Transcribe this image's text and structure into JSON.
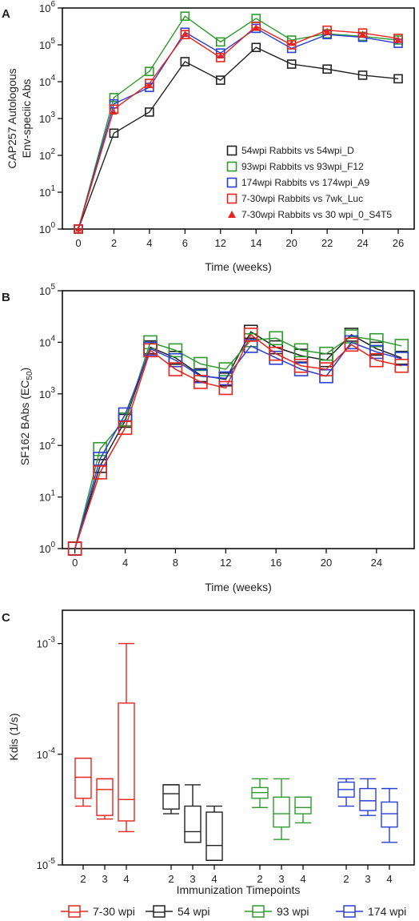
{
  "chart_data": [
    {
      "panel": "A",
      "type": "line",
      "xlabel": "Time (weeks)",
      "ylabel": [
        "CAP257 Autologous",
        "Env-speciic Abs"
      ],
      "yscale": "log",
      "ylim": [
        1,
        1000000
      ],
      "yticks": [
        {
          "base": "10",
          "exp": "0"
        },
        {
          "base": "10",
          "exp": "1"
        },
        {
          "base": "10",
          "exp": "2"
        },
        {
          "base": "10",
          "exp": "3"
        },
        {
          "base": "10",
          "exp": "4"
        },
        {
          "base": "10",
          "exp": "5"
        },
        {
          "base": "10",
          "exp": "6"
        }
      ],
      "categories": [
        "0",
        "2",
        "4",
        "6",
        "12",
        "14",
        "20",
        "22",
        "24",
        "26"
      ],
      "legend_position": "lower-right",
      "series": [
        {
          "name": "54wpi Rabbits vs 54wpi_D",
          "color": "#222222",
          "marker": "square",
          "values": [
            1,
            400,
            1500,
            35000,
            11000,
            85000,
            30000,
            22000,
            15000,
            12000
          ]
        },
        {
          "name": "93wpi Rabbits vs 93wpi_F12",
          "color": "#2e9b2e",
          "marker": "square",
          "values": [
            1,
            3700,
            19000,
            600000,
            120000,
            520000,
            135000,
            200000,
            170000,
            135000
          ]
        },
        {
          "name": "174wpi Rabbits vs 174wpi_A9",
          "color": "#2a3fd6",
          "marker": "square",
          "values": [
            1,
            2500,
            7000,
            220000,
            60000,
            280000,
            80000,
            190000,
            160000,
            110000
          ]
        },
        {
          "name": "7-30wpi Rabbits vs 7wk_Luc",
          "color": "#e8241c",
          "marker": "square",
          "values": [
            1,
            1800,
            9000,
            190000,
            45000,
            320000,
            100000,
            250000,
            210000,
            150000
          ]
        },
        {
          "name": "7-30wpi Rabbits vs 30 wpi_0_S4T5",
          "color": "#e8241c",
          "marker": "triangle",
          "values": [
            1,
            1500,
            8000,
            200000,
            50000,
            300000,
            110000,
            240000,
            200000,
            140000
          ]
        }
      ]
    },
    {
      "panel": "B",
      "type": "line",
      "xlabel": "Time (weeks)",
      "ylabel_main": "SF162 BAbs (EC",
      "ylabel_sub": "50",
      "ylabel_end": ")",
      "yscale": "log",
      "ylim": [
        1,
        100000
      ],
      "xlim": [
        -1,
        27
      ],
      "xticks": [
        0,
        4,
        8,
        12,
        16,
        20,
        24
      ],
      "yticks": [
        {
          "base": "10",
          "exp": "0"
        },
        {
          "base": "10",
          "exp": "1"
        },
        {
          "base": "10",
          "exp": "2"
        },
        {
          "base": "10",
          "exp": "3"
        },
        {
          "base": "10",
          "exp": "4"
        },
        {
          "base": "10",
          "exp": "5"
        }
      ],
      "x": [
        0,
        2,
        4,
        6,
        8,
        10,
        12,
        14,
        16,
        18,
        20,
        22,
        24,
        26
      ],
      "series": [
        {
          "color": "#222222",
          "values": [
            1,
            40,
            300,
            8000,
            5000,
            2300,
            1900,
            16000,
            8000,
            5500,
            4500,
            14000,
            7500,
            5000
          ]
        },
        {
          "color": "#2e9b2e",
          "values": [
            1,
            85,
            320,
            10000,
            7000,
            3800,
            3000,
            11000,
            12000,
            7000,
            6000,
            13000,
            11000,
            8500
          ]
        },
        {
          "color": "#2a3fd6",
          "values": [
            1,
            55,
            400,
            7500,
            4500,
            2200,
            2000,
            8500,
            5000,
            3000,
            2200,
            10000,
            6500,
            4800
          ]
        },
        {
          "color": "#e8241c",
          "values": [
            1,
            30,
            220,
            7000,
            3000,
            1700,
            1300,
            14000,
            6000,
            3500,
            3000,
            9000,
            4500,
            3500
          ]
        }
      ]
    },
    {
      "panel": "C",
      "type": "box",
      "xlabel": "Immunization Timepoints",
      "ylabel": "Kdis (1/s)",
      "yscale": "log",
      "ylim": [
        1e-05,
        0.002
      ],
      "yticks": [
        {
          "base": "10",
          "exp": "-3"
        },
        {
          "base": "10",
          "exp": "-4"
        },
        {
          "base": "10",
          "exp": "-5"
        }
      ],
      "groups": [
        {
          "name": "7-30 wpi",
          "color": "#e8241c",
          "boxes": [
            {
              "label": "2",
              "min": 3.4e-05,
              "q1": 4e-05,
              "median": 6.2e-05,
              "q3": 9.2e-05,
              "max": 9.2e-05
            },
            {
              "label": "3",
              "min": 2.6e-05,
              "q1": 2.8e-05,
              "median": 4.8e-05,
              "q3": 6e-05,
              "max": 6e-05
            },
            {
              "label": "4",
              "min": 2e-05,
              "q1": 2.5e-05,
              "median": 3.9e-05,
              "q3": 0.00029,
              "max": 0.001
            }
          ]
        },
        {
          "name": "54 wpi",
          "color": "#222222",
          "boxes": [
            {
              "label": "2",
              "min": 2.9e-05,
              "q1": 3.2e-05,
              "median": 4.4e-05,
              "q3": 5.3e-05,
              "max": 5.3e-05
            },
            {
              "label": "3",
              "min": 1.6e-05,
              "q1": 1.6e-05,
              "median": 2e-05,
              "q3": 3.4e-05,
              "max": 5.3e-05
            },
            {
              "label": "4",
              "min": 1.1e-05,
              "q1": 1.1e-05,
              "median": 1.5e-05,
              "q3": 3e-05,
              "max": 3.4e-05
            }
          ]
        },
        {
          "name": "93 wpi",
          "color": "#2e9b2e",
          "boxes": [
            {
              "label": "2",
              "min": 3.3e-05,
              "q1": 4e-05,
              "median": 4.5e-05,
              "q3": 5e-05,
              "max": 6e-05
            },
            {
              "label": "3",
              "min": 1.7e-05,
              "q1": 2.2e-05,
              "median": 2.9e-05,
              "q3": 4.1e-05,
              "max": 6e-05
            },
            {
              "label": "4",
              "min": 2.4e-05,
              "q1": 2.9e-05,
              "median": 3.3e-05,
              "q3": 4.1e-05,
              "max": 4.1e-05
            }
          ]
        },
        {
          "name": "174 wpi",
          "color": "#2a3fd6",
          "boxes": [
            {
              "label": "2",
              "min": 3.4e-05,
              "q1": 4.1e-05,
              "median": 4.8e-05,
              "q3": 5.6e-05,
              "max": 6e-05
            },
            {
              "label": "3",
              "min": 2.8e-05,
              "q1": 3.1e-05,
              "median": 3.8e-05,
              "q3": 4.9e-05,
              "max": 6e-05
            },
            {
              "label": "4",
              "min": 1.6e-05,
              "q1": 2.2e-05,
              "median": 2.9e-05,
              "q3": 3.7e-05,
              "max": 4.9e-05
            }
          ]
        }
      ]
    }
  ]
}
